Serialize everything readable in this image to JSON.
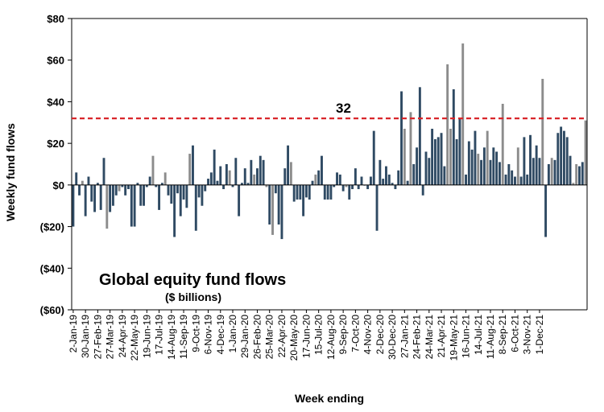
{
  "chart_data": {
    "type": "bar",
    "title": "Global equity fund flows",
    "subtitle": "($ billions)",
    "xlabel": "Week ending",
    "ylabel": "Weekly fund flows",
    "ylim": [
      -60,
      80
    ],
    "yticks": [
      -60,
      -40,
      -20,
      0,
      20,
      40,
      60,
      80
    ],
    "ytick_labels": [
      "($60)",
      "($40)",
      "($20)",
      "$0",
      "$20",
      "$40",
      "$60",
      "$80"
    ],
    "grid": false,
    "annotation": {
      "label": "32",
      "y": 32,
      "color": "#d9262b",
      "style": "dashed"
    },
    "bar_colors": {
      "dark": "#2f4a63",
      "light": "#8c8c8c"
    },
    "xtick_labels": [
      "2-Jan-19",
      "30-Jan-19",
      "27-Feb-19",
      "27-Mar-19",
      "24-Apr-19",
      "22-May-19",
      "19-Jun-19",
      "17-Jul-19",
      "14-Aug-19",
      "11-Sep-19",
      "9-Oct-19",
      "6-Nov-19",
      "4-Dec-19",
      "1-Jan-20",
      "29-Jan-20",
      "26-Feb-20",
      "25-Mar-20",
      "22-Apr-20",
      "20-May-20",
      "17-Jun-20",
      "15-Jul-20",
      "12-Aug-20",
      "9-Sep-20",
      "7-Oct-20",
      "4-Nov-20",
      "2-Dec-20",
      "30-Dec-20",
      "27-Jan-21",
      "24-Feb-21",
      "24-Mar-21",
      "21-Apr-21",
      "19-May-21",
      "16-Jun-21",
      "14-Jul-21",
      "11-Aug-21",
      "8-Sep-21",
      "6-Oct-21",
      "3-Nov-21",
      "1-Dec-21"
    ],
    "values": [
      -20,
      6,
      -5,
      2,
      -15,
      4,
      -8,
      -13,
      1,
      -12,
      13,
      -21,
      -13,
      -10,
      -5,
      -3,
      -1,
      -5,
      -2,
      -20,
      -20,
      1,
      -10,
      -10,
      -1,
      4,
      14,
      -1,
      -12,
      1,
      6,
      -5,
      -9,
      -25,
      -4,
      -15,
      -7,
      -11,
      15,
      19,
      -22,
      -6,
      -10,
      -3,
      3,
      6,
      17,
      2,
      9,
      -2,
      10,
      7,
      -1,
      13,
      -15,
      1,
      8,
      1,
      12,
      5,
      8,
      14,
      12,
      -1,
      -19,
      -24,
      -4,
      -19,
      -26,
      8,
      19,
      11,
      -8,
      -7,
      -7,
      -15,
      -6,
      -7,
      2,
      5,
      7,
      14,
      -7,
      -7,
      -7,
      -1,
      6,
      5,
      -3,
      -1,
      -7,
      -2,
      8,
      -2,
      4,
      0,
      -2,
      4,
      26,
      -22,
      12,
      3,
      9,
      5,
      1,
      -2,
      7,
      45,
      27,
      2,
      35,
      10,
      18,
      47,
      -5,
      16,
      13,
      27,
      22,
      23,
      25,
      9,
      58,
      27,
      46,
      22,
      32,
      68,
      5,
      21,
      17,
      26,
      15,
      12,
      18,
      26,
      12,
      18,
      16,
      11,
      39,
      5,
      10,
      7,
      4,
      18,
      4,
      23,
      5,
      24,
      13,
      19,
      13,
      51,
      -25,
      10,
      13,
      12,
      25,
      28,
      26,
      23,
      14,
      1,
      10,
      9,
      11,
      31
    ],
    "light_indices": [
      3,
      11,
      15,
      26,
      30,
      38,
      51,
      59,
      63,
      65,
      71,
      79,
      89,
      108,
      110,
      122,
      123,
      127,
      132,
      135,
      140,
      145,
      153,
      156,
      163,
      164,
      167,
      173,
      177
    ]
  }
}
